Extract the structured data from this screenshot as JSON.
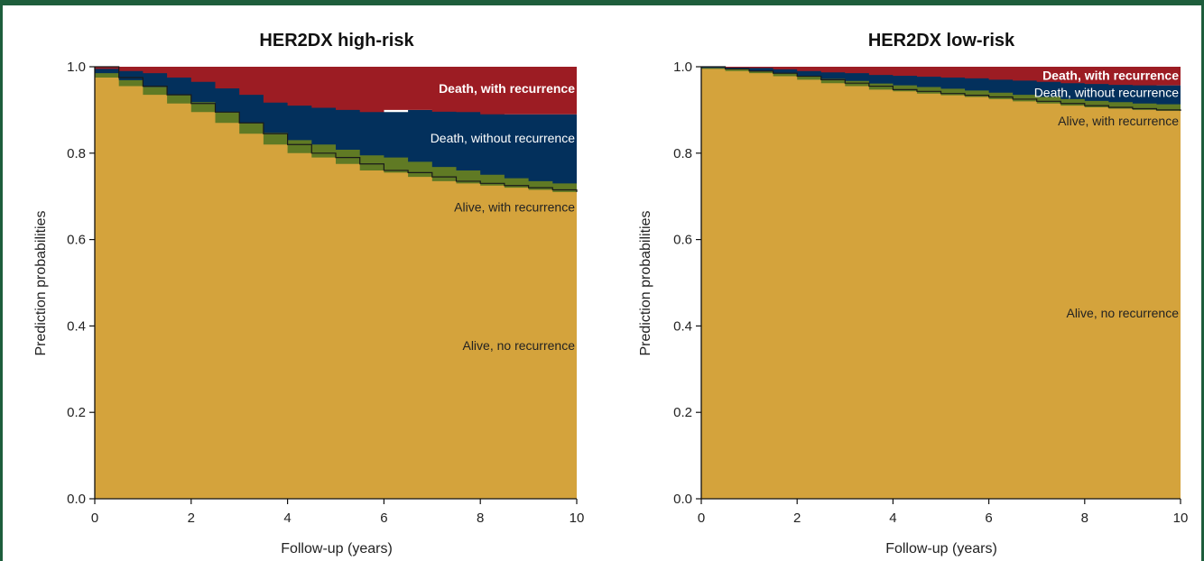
{
  "colors": {
    "alive_no_recurrence": "#d4a33c",
    "alive_with_recurrence": "#607a24",
    "death_without_recurrence": "#03305c",
    "death_with_recurrence": "#9c1c23",
    "frame": "#1e5e3c"
  },
  "chart_data": [
    {
      "type": "area",
      "title": "HER2DX high-risk",
      "xlabel": "Follow-up (years)",
      "ylabel": "Prediction probabilities",
      "xlim": [
        0,
        10
      ],
      "ylim": [
        0,
        1
      ],
      "x_ticks": [
        "0",
        "2",
        "4",
        "6",
        "8",
        "10"
      ],
      "y_ticks": [
        "0.0",
        "0.2",
        "0.4",
        "0.6",
        "0.8",
        "1.0"
      ],
      "grid": false,
      "x": [
        0,
        0.5,
        1,
        1.5,
        2,
        2.5,
        3,
        3.5,
        4,
        4.5,
        5,
        5.5,
        6,
        6.5,
        7,
        7.5,
        8,
        8.5,
        9,
        9.5,
        10
      ],
      "series": [
        {
          "name": "Alive, no recurrence",
          "color_key": "alive_no_recurrence",
          "values": [
            1.0,
            0.975,
            0.955,
            0.935,
            0.915,
            0.895,
            0.87,
            0.845,
            0.82,
            0.8,
            0.79,
            0.775,
            0.76,
            0.755,
            0.745,
            0.735,
            0.73,
            0.725,
            0.72,
            0.715,
            0.71
          ]
        },
        {
          "name": "Alive, with recurrence",
          "color_key": "alive_with_recurrence",
          "values": [
            0.0,
            0.01,
            0.014,
            0.018,
            0.02,
            0.023,
            0.025,
            0.025,
            0.027,
            0.03,
            0.03,
            0.033,
            0.035,
            0.035,
            0.035,
            0.033,
            0.03,
            0.025,
            0.022,
            0.02,
            0.02
          ]
        },
        {
          "name": "Death, without recurrence",
          "color_key": "death_without_recurrence",
          "values": [
            0.0,
            0.01,
            0.021,
            0.032,
            0.04,
            0.047,
            0.055,
            0.065,
            0.07,
            0.08,
            0.085,
            0.092,
            0.1,
            0.11,
            0.12,
            0.128,
            0.135,
            0.14,
            0.148,
            0.155,
            0.16
          ]
        },
        {
          "name": "Death, with recurrence",
          "color_key": "death_with_recurrence",
          "values": [
            0.0,
            0.005,
            0.01,
            0.015,
            0.025,
            0.035,
            0.05,
            0.065,
            0.083,
            0.09,
            0.095,
            0.1,
            0.105,
            0.1,
            0.1,
            0.104,
            0.105,
            0.11,
            0.11,
            0.11,
            0.11
          ]
        }
      ],
      "annotations": [
        {
          "text": "Death, with recurrence",
          "bold": true,
          "color": "#ffffff",
          "x": 10,
          "y": 0.95
        },
        {
          "text": "Death, without recurrence",
          "bold": false,
          "color": "#ffffff",
          "x": 10,
          "y": 0.835
        },
        {
          "text": "Alive, with recurrence",
          "bold": false,
          "color": "#222222",
          "x": 10,
          "y": 0.675
        },
        {
          "text": "Alive, no recurrence",
          "bold": false,
          "color": "#222222",
          "x": 10,
          "y": 0.355
        }
      ]
    },
    {
      "type": "area",
      "title": "HER2DX low-risk",
      "xlabel": "Follow-up (years)",
      "ylabel": "Prediction probabilities",
      "xlim": [
        0,
        10
      ],
      "ylim": [
        0,
        1
      ],
      "x_ticks": [
        "0",
        "2",
        "4",
        "6",
        "8",
        "10"
      ],
      "y_ticks": [
        "0.0",
        "0.2",
        "0.4",
        "0.6",
        "0.8",
        "1.0"
      ],
      "grid": false,
      "x": [
        0,
        0.5,
        1,
        1.5,
        2,
        2.5,
        3,
        3.5,
        4,
        4.5,
        5,
        5.5,
        6,
        6.5,
        7,
        7.5,
        8,
        8.5,
        9,
        9.5,
        10
      ],
      "series": [
        {
          "name": "Alive, no recurrence",
          "color_key": "alive_no_recurrence",
          "values": [
            1.0,
            0.995,
            0.99,
            0.985,
            0.978,
            0.97,
            0.962,
            0.955,
            0.947,
            0.943,
            0.938,
            0.934,
            0.93,
            0.925,
            0.92,
            0.915,
            0.91,
            0.906,
            0.903,
            0.9,
            0.898
          ]
        },
        {
          "name": "Alive, with recurrence",
          "color_key": "alive_with_recurrence",
          "values": [
            0.0,
            0.002,
            0.004,
            0.005,
            0.006,
            0.008,
            0.01,
            0.012,
            0.014,
            0.014,
            0.015,
            0.015,
            0.015,
            0.015,
            0.015,
            0.015,
            0.015,
            0.015,
            0.015,
            0.015,
            0.015
          ]
        },
        {
          "name": "Death, without recurrence",
          "color_key": "death_without_recurrence",
          "values": [
            0.0,
            0.002,
            0.004,
            0.007,
            0.01,
            0.012,
            0.015,
            0.018,
            0.02,
            0.022,
            0.024,
            0.026,
            0.028,
            0.03,
            0.033,
            0.035,
            0.037,
            0.039,
            0.04,
            0.042,
            0.044
          ]
        },
        {
          "name": "Death, with recurrence",
          "color_key": "death_with_recurrence",
          "values": [
            0.0,
            0.001,
            0.002,
            0.003,
            0.006,
            0.01,
            0.013,
            0.015,
            0.019,
            0.021,
            0.023,
            0.025,
            0.027,
            0.03,
            0.032,
            0.035,
            0.038,
            0.04,
            0.042,
            0.043,
            0.043
          ]
        }
      ],
      "annotations": [
        {
          "text": "Death, with recurrence",
          "bold": true,
          "color": "#ffffff",
          "x": 10,
          "y": 0.98
        },
        {
          "text": "Death, without recurrence",
          "bold": false,
          "color": "#ffffff",
          "x": 10,
          "y": 0.94
        },
        {
          "text": "Alive, with recurrence",
          "bold": false,
          "color": "#222222",
          "x": 10,
          "y": 0.875
        },
        {
          "text": "Alive, no recurrence",
          "bold": false,
          "color": "#222222",
          "x": 10,
          "y": 0.43
        }
      ]
    }
  ]
}
